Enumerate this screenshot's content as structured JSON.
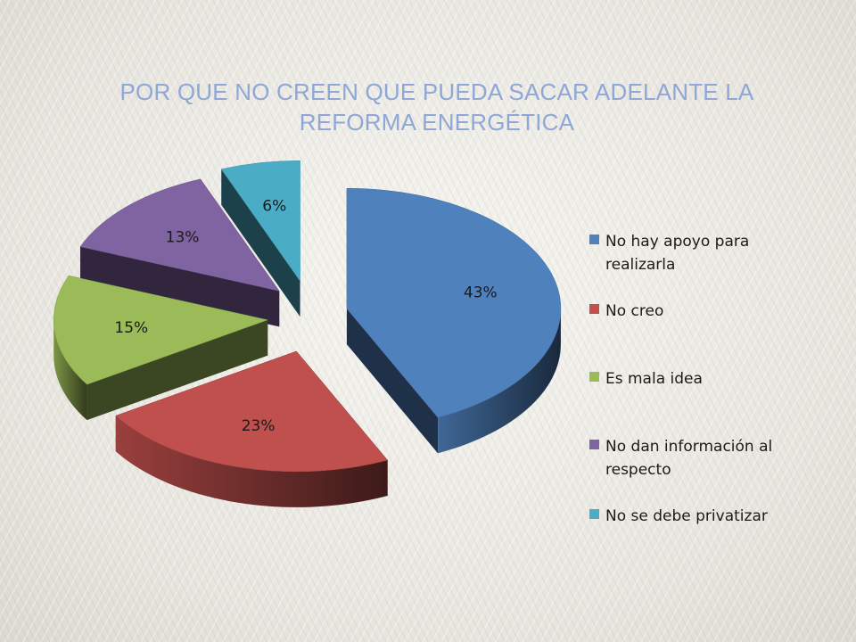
{
  "slide": {
    "title": "POR QUE NO CREEN QUE PUEDA SACAR ADELANTE LA REFORMA ENERGÉTICA"
  },
  "chart_data": {
    "type": "pie",
    "title": "POR QUE NO CREEN QUE PUEDA SACAR ADELANTE LA REFORMA ENERGÉTICA",
    "style": "3d-exploded",
    "legend_position": "right",
    "categories": [
      "No hay apoyo para realizarla",
      "No creo",
      "Es mala idea",
      "No dan información al respecto",
      "No se debe privatizar"
    ],
    "values": [
      43,
      23,
      15,
      13,
      6
    ],
    "labels": [
      "43%",
      "23%",
      "15%",
      "13%",
      "6%"
    ],
    "colors": [
      "#4f81bd",
      "#c0504d",
      "#9bbb59",
      "#8064a2",
      "#4bacc6"
    ]
  }
}
